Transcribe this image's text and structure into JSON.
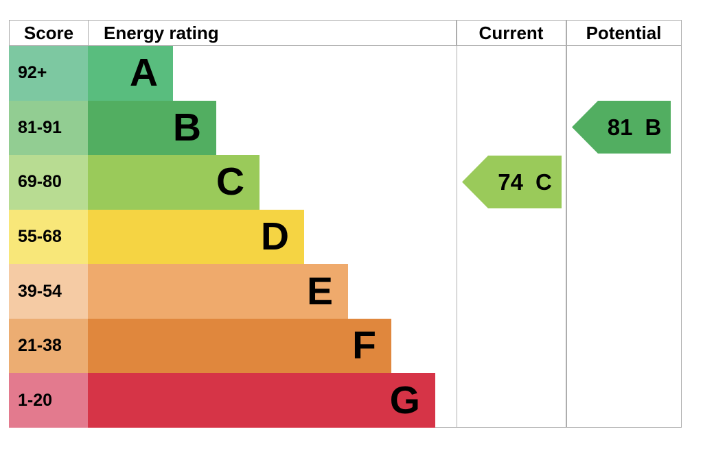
{
  "header": {
    "score": "Score",
    "energy_rating": "Energy rating",
    "current": "Current",
    "potential": "Potential"
  },
  "bands": [
    {
      "score": "92+",
      "letter": "A",
      "bar_color": "#59bd7e",
      "score_color": "#7dc8a1"
    },
    {
      "score": "81-91",
      "letter": "B",
      "bar_color": "#52ae61",
      "score_color": "#92cd92"
    },
    {
      "score": "69-80",
      "letter": "C",
      "bar_color": "#9aca5a",
      "score_color": "#b8dc92"
    },
    {
      "score": "55-68",
      "letter": "D",
      "bar_color": "#f5d443",
      "score_color": "#f8e779"
    },
    {
      "score": "39-54",
      "letter": "E",
      "bar_color": "#efaa6c",
      "score_color": "#f5cba4"
    },
    {
      "score": "21-38",
      "letter": "F",
      "bar_color": "#e0873d",
      "score_color": "#ecad72"
    },
    {
      "score": "1-20",
      "letter": "G",
      "bar_color": "#d63447",
      "score_color": "#e37a8e"
    }
  ],
  "current": {
    "value": "74",
    "letter": "C",
    "color": "#9aca5a"
  },
  "potential": {
    "value": "81",
    "letter": "B",
    "color": "#52ae61"
  },
  "chart_data": {
    "type": "table",
    "title": "Energy rating",
    "columns": [
      "Score",
      "Energy rating",
      "Current",
      "Potential"
    ],
    "bands": [
      {
        "rating": "A",
        "score_range": "92+"
      },
      {
        "rating": "B",
        "score_range": "81-91"
      },
      {
        "rating": "C",
        "score_range": "69-80"
      },
      {
        "rating": "D",
        "score_range": "55-68"
      },
      {
        "rating": "E",
        "score_range": "39-54"
      },
      {
        "rating": "F",
        "score_range": "21-38"
      },
      {
        "rating": "G",
        "score_range": "1-20"
      }
    ],
    "current": {
      "score": 74,
      "rating": "C"
    },
    "potential": {
      "score": 81,
      "rating": "B"
    },
    "legend_position": "none",
    "grid": false,
    "notes": "EPC energy-efficiency band chart; bar length increases from A to G; arrows mark current (74, band C) and potential (81, band B) ratings."
  }
}
